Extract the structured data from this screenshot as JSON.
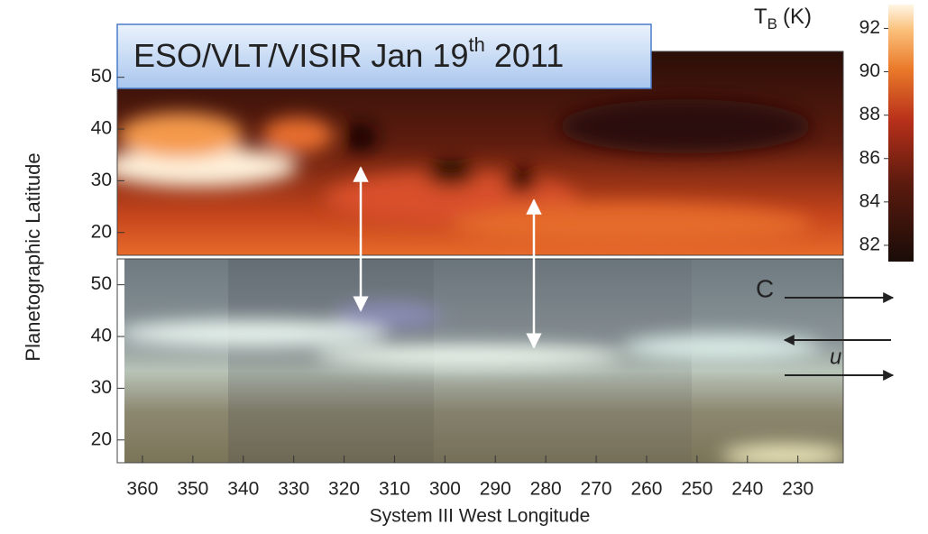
{
  "annotation": {
    "text": "ESO/VLT/VISIR Jan 19",
    "superscript": "th",
    "suffix": "2011"
  },
  "chart_data": {
    "type": "image-map",
    "xlabel": "System III West Longitude",
    "ylabel": "Planetographic Latitude",
    "xlim": [
      365,
      221
    ],
    "xticks": [
      360,
      350,
      340,
      330,
      320,
      310,
      300,
      290,
      280,
      270,
      260,
      250,
      240,
      230
    ],
    "panels": [
      {
        "ylim": [
          15.6,
          55
        ],
        "yticks": [
          20,
          30,
          40,
          50
        ]
      },
      {
        "ylim": [
          15.6,
          55
        ],
        "yticks": [
          20,
          30,
          40,
          50
        ]
      }
    ],
    "colorbar": {
      "label": "T",
      "label_sub": "B",
      "label_unit": "(K)",
      "lim": [
        81.25,
        93.1
      ],
      "ticks": [
        82,
        84,
        86,
        88,
        90,
        92
      ]
    },
    "panel_label": "C",
    "wind_label": "u"
  }
}
